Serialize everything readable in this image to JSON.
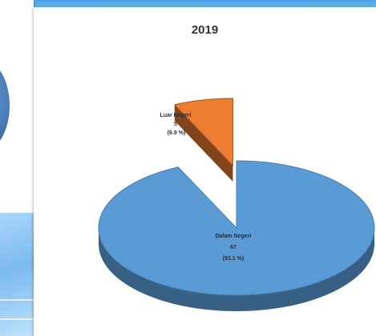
{
  "chart_data": {
    "type": "pie",
    "title": "2019",
    "slices": [
      {
        "label": "Dalam Negeri",
        "value": 67,
        "percent_label": "(93.1 %)",
        "color": "#5b9bd5"
      },
      {
        "label": "Luar Negeri",
        "value": 5,
        "percent_label": "(6.9 %)",
        "color": "#ed7d31"
      }
    ],
    "exploded": true,
    "three_d": true
  }
}
